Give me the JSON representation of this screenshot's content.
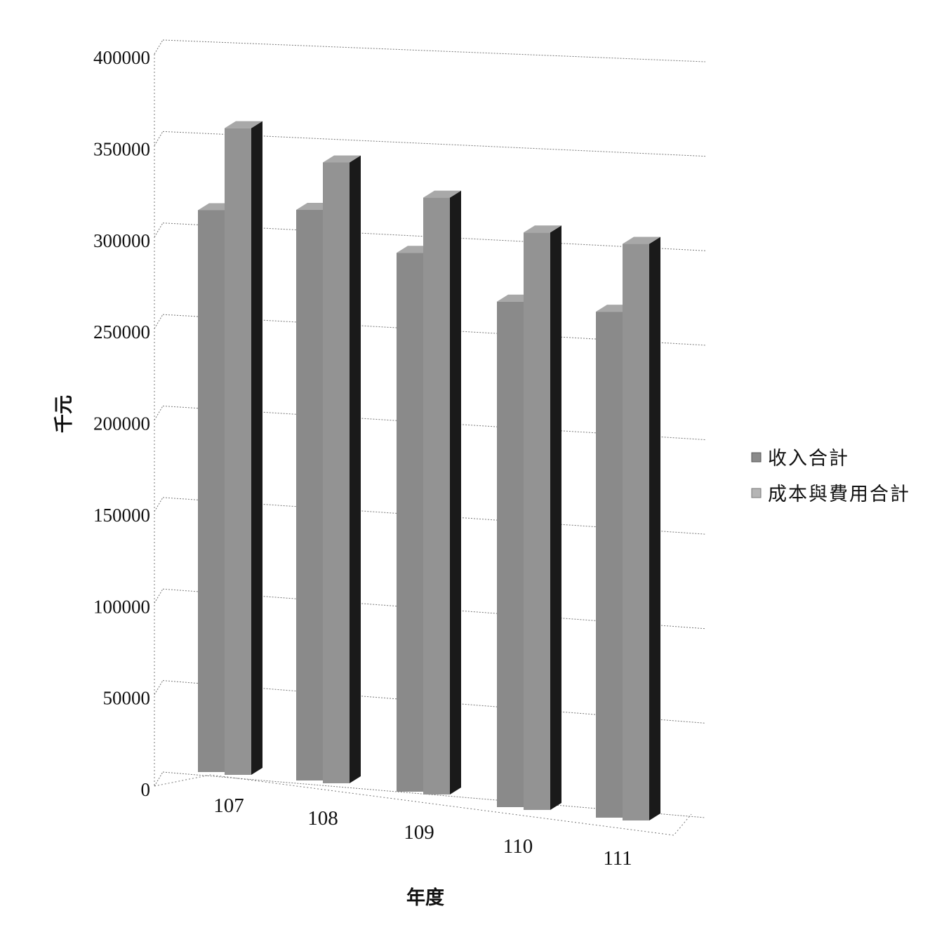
{
  "chart_data": {
    "type": "bar",
    "categories": [
      "107",
      "108",
      "109",
      "110",
      "111"
    ],
    "series": [
      {
        "name": "收入合計",
        "values": [
          307000,
          310000,
          290000,
          268000,
          266000
        ]
      },
      {
        "name": "成本與費用合計",
        "values": [
          352000,
          336000,
          320000,
          305000,
          302000
        ]
      }
    ],
    "xlabel": "年度",
    "ylabel": "千元",
    "ylim": [
      0,
      400000
    ],
    "yticks": [
      "0",
      "50000",
      "100000",
      "150000",
      "200000",
      "250000",
      "300000",
      "350000",
      "400000"
    ],
    "grid": true,
    "legend_position": "right",
    "style": "3d-column",
    "colors": {
      "front": "#8a8a8a",
      "side": "#1a1a1a",
      "top": "#a8a8a8",
      "grid": "#777777"
    }
  }
}
